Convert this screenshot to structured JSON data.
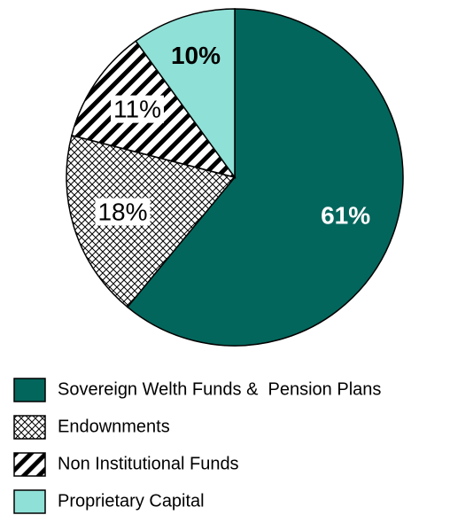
{
  "chart_data": {
    "type": "pie",
    "categories": [
      "Sovereign Welth Funds &  Pension Plans",
      "Endownments",
      "Non Institutional Funds",
      "Proprietary Capital"
    ],
    "values": [
      61,
      18,
      11,
      10
    ],
    "value_labels": [
      "61%",
      "18%",
      "11%",
      "10%"
    ],
    "colors": [
      "#03665c",
      "#ffffff",
      "#ffffff",
      "#8fe0d6"
    ],
    "patterns": [
      "solid",
      "crosshatch",
      "diagonal",
      "solid"
    ],
    "label_colors": [
      "#ffffff",
      "#000000",
      "#000000",
      "#000000"
    ],
    "legend": "bottom"
  }
}
